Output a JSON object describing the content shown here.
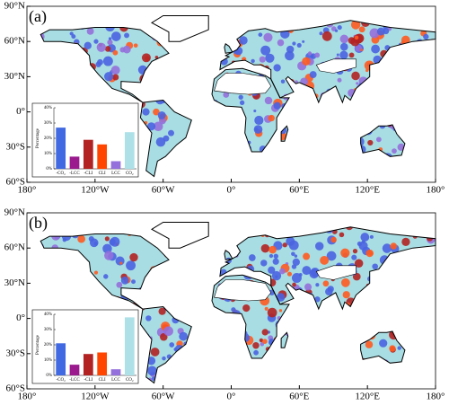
{
  "map": {
    "xlim": [
      -180,
      180
    ],
    "ylim": [
      -60,
      90
    ],
    "xticks": [
      {
        "value": -180,
        "label": "180°"
      },
      {
        "value": -120,
        "label": "120°W"
      },
      {
        "value": -60,
        "label": "60°W"
      },
      {
        "value": 0,
        "label": "0°"
      },
      {
        "value": 60,
        "label": "60°E"
      },
      {
        "value": 120,
        "label": "120°E"
      },
      {
        "value": 180,
        "label": "180°"
      }
    ],
    "yticks": [
      {
        "value": 90,
        "label": "90°N"
      },
      {
        "value": 60,
        "label": "60°N"
      },
      {
        "value": 30,
        "label": "30°N"
      },
      {
        "value": 0,
        "label": "0°"
      },
      {
        "value": -30,
        "label": "30°S"
      },
      {
        "value": -60,
        "label": "60°S"
      }
    ]
  },
  "chart_data": [
    {
      "type": "bar",
      "panel_label": "(a)",
      "y_label": "Percentage",
      "categories": [
        "-CO₂",
        "-LCC",
        "-CLI",
        "CLI",
        "LCC",
        "CO₂"
      ],
      "values": [
        27,
        8,
        19,
        16,
        5,
        24
      ],
      "colors": [
        "#4169e1",
        "#9b1b8f",
        "#b22222",
        "#ff4500",
        "#9370db",
        "#aee0e8"
      ],
      "ylim": [
        0,
        40
      ],
      "yticks": [
        {
          "value": 0,
          "label": "0%"
        },
        {
          "value": 10,
          "label": "10%"
        },
        {
          "value": 20,
          "label": "20%"
        },
        {
          "value": 30,
          "label": "30%"
        },
        {
          "value": 40,
          "label": "40%"
        }
      ]
    },
    {
      "type": "bar",
      "panel_label": "(b)",
      "y_label": "Percentage",
      "categories": [
        "-CO₂",
        "-LCC",
        "-CLI",
        "CLI",
        "LCC",
        "CO₂"
      ],
      "values": [
        21,
        7,
        14,
        15,
        4,
        38
      ],
      "colors": [
        "#4169e1",
        "#9b1b8f",
        "#b22222",
        "#ff4500",
        "#9370db",
        "#aee0e8"
      ],
      "ylim": [
        0,
        40
      ],
      "yticks": [
        {
          "value": 0,
          "label": "0%"
        },
        {
          "value": 10,
          "label": "10%"
        },
        {
          "value": 20,
          "label": "20%"
        },
        {
          "value": 30,
          "label": "30%"
        },
        {
          "value": 40,
          "label": "40%"
        }
      ]
    }
  ]
}
